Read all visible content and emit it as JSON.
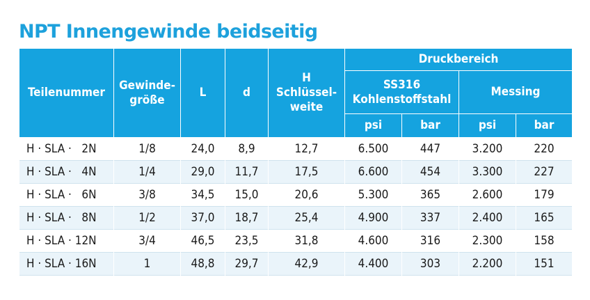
{
  "title": "NPT Innengewinde beidseitig",
  "headers": {
    "part": "Teilenummer",
    "thread_line1": "Gewinde-",
    "thread_line2": "größe",
    "L": "L",
    "d": "d",
    "H_line1": "H",
    "H_line2": "Schlüssel-",
    "H_line3": "weite",
    "pressure_range": "Druckbereich",
    "steel_line1": "SS316",
    "steel_line2": "Kohlenstoffstahl",
    "brass": "Messing",
    "steel_psi": "psi",
    "steel_bar": "bar",
    "brass_psi": "psi",
    "brass_bar": "bar"
  },
  "rows": [
    [
      "H · SLA ·   2N",
      "1/8",
      "24,0",
      "8,9",
      "12,7",
      "6.500",
      "447",
      "3.200",
      "220"
    ],
    [
      "H · SLA ·   4N",
      "1/4",
      "29,0",
      "11,7",
      "17,5",
      "6.600",
      "454",
      "3.300",
      "227"
    ],
    [
      "H · SLA ·   6N",
      "3/8",
      "34,5",
      "15,0",
      "20,6",
      "5.300",
      "365",
      "2.600",
      "179"
    ],
    [
      "H · SLA ·   8N",
      "1/2",
      "37,0",
      "18,7",
      "25,4",
      "4.900",
      "337",
      "2.400",
      "165"
    ],
    [
      "H · SLA · 12N",
      "3/4",
      "46,5",
      "23,5",
      "31,8",
      "4.600",
      "316",
      "2.300",
      "158"
    ],
    [
      "H · SLA · 16N",
      "1",
      "48,8",
      "29,7",
      "42,9",
      "4.400",
      "303",
      "2.200",
      "151"
    ]
  ],
  "colors": {
    "title": "#1da1dc",
    "header_bg": "#15a3df",
    "row_alt": "#eaf4fa"
  }
}
